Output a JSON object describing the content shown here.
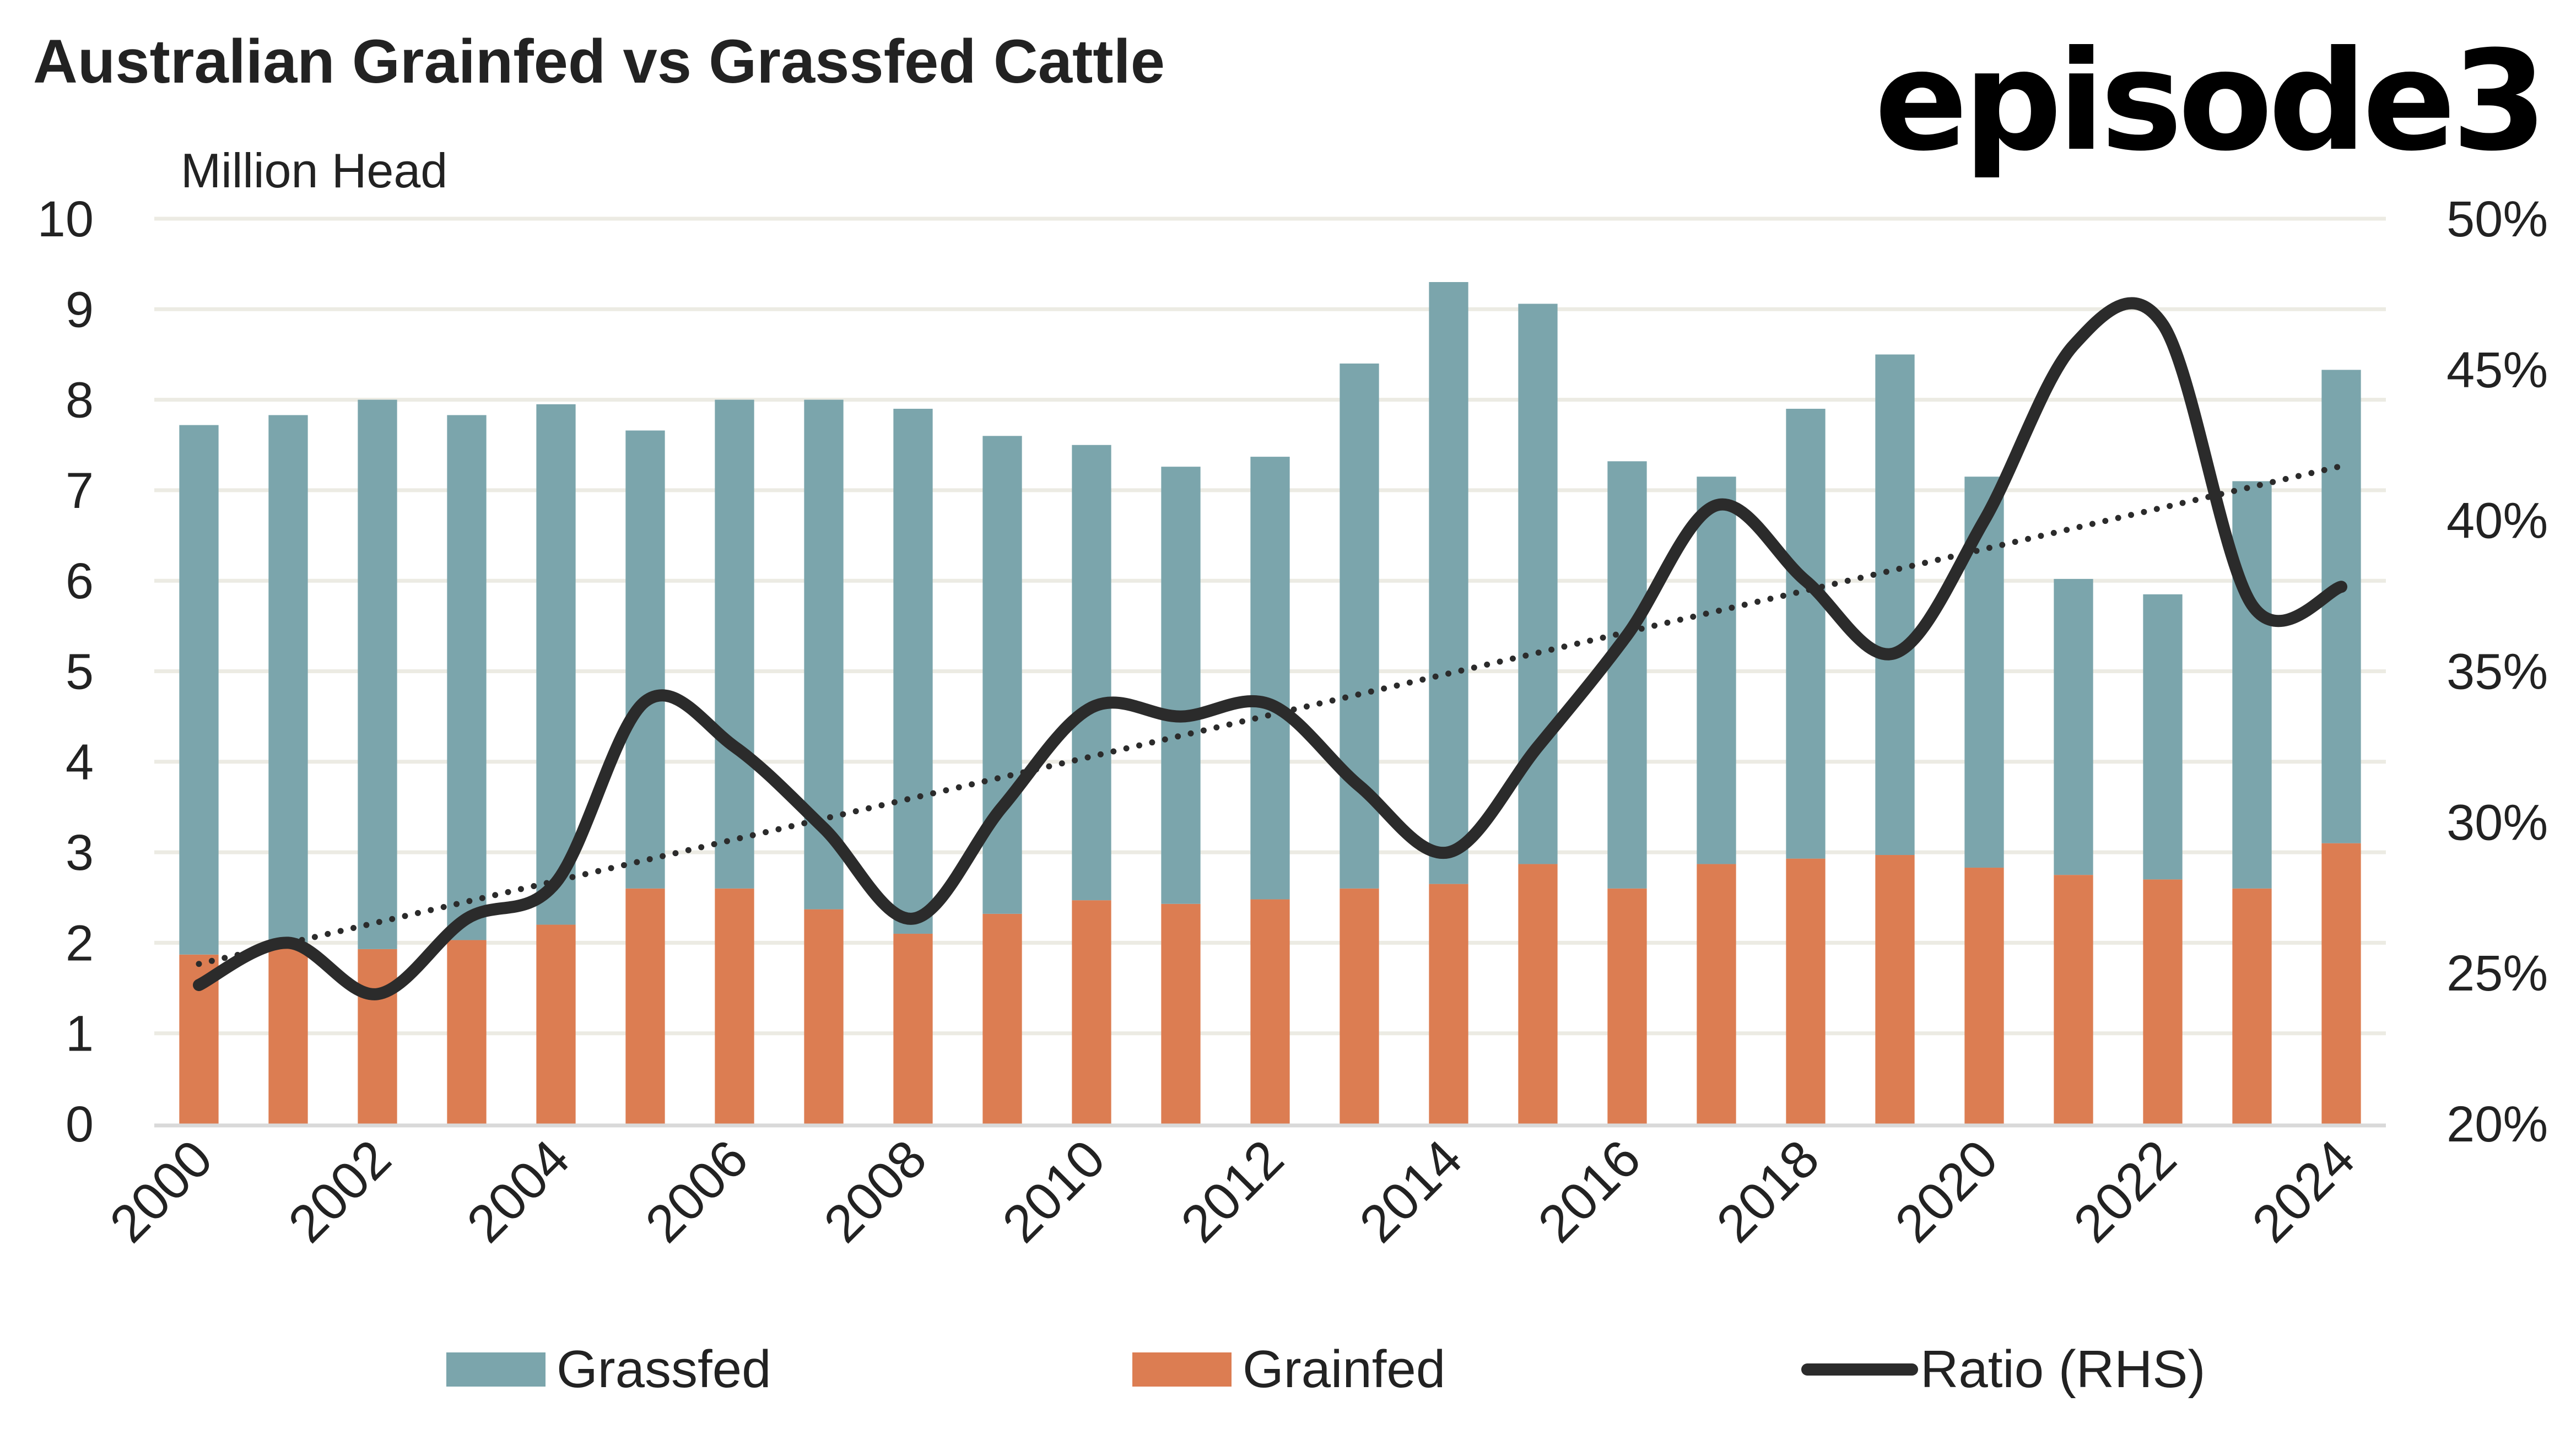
{
  "chart_data": {
    "type": "bar",
    "title": "Australian Grainfed vs Grassfed Cattle",
    "brand": "episode3",
    "ylabel": "Million Head",
    "y2label": "",
    "xlabel": "",
    "ylim": [
      0,
      10
    ],
    "yticks": [
      "0",
      "1",
      "2",
      "3",
      "4",
      "5",
      "6",
      "7",
      "8",
      "9",
      "10"
    ],
    "y2lim": [
      0.2,
      0.5
    ],
    "y2ticks": [
      "20%",
      "25%",
      "30%",
      "35%",
      "40%",
      "45%",
      "50%"
    ],
    "grid": true,
    "stacked": true,
    "legend_position": "bottom",
    "categories": [
      "2000",
      "2001",
      "2002",
      "2003",
      "2004",
      "2005",
      "2006",
      "2007",
      "2008",
      "2009",
      "2010",
      "2011",
      "2012",
      "2013",
      "2014",
      "2015",
      "2016",
      "2017",
      "2018",
      "2019",
      "2020",
      "2021",
      "2022",
      "2023",
      "2024"
    ],
    "xtick_labels": [
      "2000",
      "2002",
      "2004",
      "2006",
      "2008",
      "2010",
      "2012",
      "2014",
      "2016",
      "2018",
      "2020",
      "2022",
      "2024"
    ],
    "series": [
      {
        "name": "Grainfed",
        "type": "bar",
        "axis": "left",
        "color": "#DC7D52",
        "values": [
          1.87,
          2.0,
          1.93,
          2.03,
          2.2,
          2.6,
          2.6,
          2.37,
          2.1,
          2.32,
          2.47,
          2.43,
          2.48,
          2.6,
          2.65,
          2.87,
          2.6,
          2.87,
          2.93,
          2.97,
          2.83,
          2.75,
          2.7,
          2.6,
          3.1
        ]
      },
      {
        "name": "Grassfed",
        "type": "bar",
        "axis": "left",
        "color": "#7BA5AC",
        "values": [
          5.85,
          5.83,
          6.07,
          5.8,
          5.75,
          5.06,
          5.4,
          5.63,
          5.8,
          5.28,
          5.03,
          4.83,
          4.89,
          5.8,
          6.65,
          6.19,
          4.72,
          4.28,
          4.97,
          5.53,
          4.32,
          3.27,
          3.15,
          4.5,
          5.23
        ]
      },
      {
        "name": "Ratio (RHS)",
        "type": "line",
        "axis": "right",
        "color": "#2B2B2B",
        "smooth": true,
        "values": [
          0.246,
          0.26,
          0.243,
          0.268,
          0.28,
          0.34,
          0.325,
          0.298,
          0.268,
          0.305,
          0.338,
          0.335,
          0.339,
          0.312,
          0.29,
          0.325,
          0.362,
          0.405,
          0.38,
          0.356,
          0.4,
          0.458,
          0.465,
          0.372,
          0.378
        ]
      }
    ],
    "trendline": {
      "of": "Ratio (RHS)",
      "style": "dotted",
      "start": 0.253,
      "end": 0.418
    },
    "legend": [
      {
        "label": "Grassfed",
        "color": "#7BA5AC",
        "kind": "box"
      },
      {
        "label": "Grainfed",
        "color": "#DC7D52",
        "kind": "box"
      },
      {
        "label": "Ratio (RHS)",
        "color": "#2B2B2B",
        "kind": "line"
      }
    ],
    "colors": {
      "grid": "#ECEBE3",
      "axis": "#D9D9D9",
      "text": "#222222"
    }
  }
}
